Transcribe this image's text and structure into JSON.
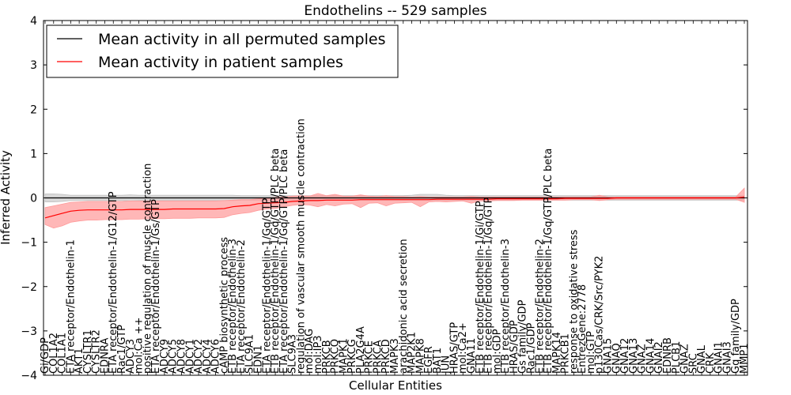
{
  "chart_data": {
    "type": "line",
    "title": "Endothelins -- 529 samples",
    "xlabel": "Cellular Entities",
    "ylabel": "Inferred Activity",
    "ylim": [
      -4,
      4
    ],
    "yticks": [
      -4,
      -3,
      -2,
      -1,
      0,
      1,
      2,
      3,
      4
    ],
    "grid": false,
    "legend_position": "top-left",
    "categories": [
      "Gi/GDP",
      "COL1A2",
      "COL1A1",
      "ETA receptor/Endothelin-1",
      "AKT1",
      "CYSLTR1",
      "CYSLTR2",
      "EDNRA",
      "ETA receptor/Endothelin-1/G12/GTP",
      "Rac1/GTP",
      "ADCY3",
      "mol:Ca ++",
      "positive regulation of muscle contraction",
      "ETA receptor/Endothelin-1/Gs/GTP",
      "ADCY9",
      "ADCY5",
      "ADCY8",
      "ADCY1",
      "ADCY2",
      "ADCY4",
      "ADCY6",
      "cAMP biosynthetic process",
      "ETB receptor/Endothelin-3",
      "ETA receptor/Endothelin-2",
      "SLC9A1",
      "EDN1",
      "ETA receptor/Endothelin-1/Gq/GTP",
      "ETB receptor/Endothelin-1/Gq/GTP/PLC beta",
      "ETA receptor/Endothelin-1/Gq/GTP/PLC beta",
      "SLC9A3",
      "regulation of vascular smooth muscle contraction",
      "mol:DAG",
      "mol:IP3",
      "PRKCB",
      "PRKCQ",
      "MAPK1",
      "PRKCG",
      "PLA2G4A",
      "PRKCE",
      "PRKCA",
      "PRKCD",
      "MAPK3",
      "arachidonic acid secretion",
      "MAP2K1",
      "MAPK8",
      "EGFR",
      "BAT1",
      "JUN",
      "HRAS/GTP",
      "mol:Ca2+",
      "GNA11",
      "ETB receptor/Endothelin-1/Gi/GTP",
      "ETB receptor/Endothelin-1/Gq/GTP",
      "mol:GDP",
      "ETB receptor/Endothelin-3",
      "HRAS/GDP",
      "Gs family/GDP",
      "Rac1/GDP",
      "ETB receptor/Endothelin-2",
      "ETB receptor/Endothelin-1/Gq/GTP/PLC beta",
      "MAPK14",
      "PRKCB1",
      "response to oxidative stress",
      "EntrezGene:2778",
      "mol:GTP",
      "p130Cas/CRK/Src/PYK2",
      "GNA15",
      "GNAQ",
      "GNA12",
      "GNA13",
      "GNAZ",
      "GNA14",
      "GNAI2",
      "EDNRB",
      "PLCB1",
      "GNAZ",
      "SRC",
      "GNAL",
      "CRK",
      "GNAI1",
      "GNAI3",
      "Gq family/GDP",
      "MMP1"
    ],
    "series": [
      {
        "name": "Mean activity in all permuted samples",
        "color": "#000000",
        "band_color": "#c0c0c0",
        "values": [
          0.0,
          0.0,
          0.0,
          0.0,
          0.0,
          0.0,
          0.0,
          0.0,
          0.0,
          0.0,
          0.0,
          0.0,
          0.0,
          0.0,
          0.0,
          0.0,
          0.0,
          0.0,
          0.0,
          0.0,
          0.0,
          0.0,
          0.0,
          0.0,
          0.0,
          0.0,
          0.0,
          0.0,
          0.0,
          0.0,
          0.0,
          0.0,
          0.0,
          0.0,
          0.0,
          0.0,
          0.0,
          0.0,
          0.0,
          0.0,
          0.0,
          0.0,
          0.0,
          0.0,
          0.0,
          0.0,
          0.0,
          0.0,
          0.0,
          0.0,
          0.0,
          0.0,
          0.0,
          0.0,
          0.0,
          0.0,
          0.0,
          0.0,
          0.0,
          0.0,
          0.0,
          0.0,
          0.0,
          0.0,
          0.0,
          0.0,
          0.0,
          0.0,
          0.0,
          0.0,
          0.0,
          0.0,
          0.0,
          0.0,
          0.0,
          0.0,
          0.0,
          0.0,
          0.0,
          0.0,
          0.0,
          0.0,
          0.0
        ],
        "band_low": [
          -0.09,
          -0.09,
          -0.08,
          -0.06,
          -0.06,
          -0.06,
          -0.06,
          -0.06,
          -0.06,
          -0.06,
          -0.07,
          -0.06,
          -0.06,
          -0.06,
          -0.06,
          -0.06,
          -0.06,
          -0.06,
          -0.06,
          -0.06,
          -0.06,
          -0.06,
          -0.06,
          -0.05,
          -0.05,
          -0.05,
          -0.05,
          -0.05,
          -0.05,
          -0.05,
          -0.05,
          -0.05,
          -0.05,
          -0.05,
          -0.05,
          -0.05,
          -0.05,
          -0.05,
          -0.05,
          -0.05,
          -0.05,
          -0.05,
          -0.05,
          -0.05,
          -0.05,
          -0.05,
          -0.05,
          -0.05,
          -0.05,
          -0.05,
          -0.05,
          -0.05,
          -0.05,
          -0.05,
          -0.05,
          -0.05,
          -0.05,
          -0.05,
          -0.05,
          -0.05,
          -0.05,
          -0.05,
          -0.05,
          -0.05,
          -0.05,
          -0.05,
          -0.05,
          -0.05,
          -0.05,
          -0.05,
          -0.05,
          -0.05,
          -0.05,
          -0.05,
          -0.05,
          -0.05,
          -0.05,
          -0.05,
          -0.05,
          -0.05,
          -0.05,
          -0.05,
          -0.05
        ],
        "band_high": [
          0.09,
          0.09,
          0.08,
          0.06,
          0.06,
          0.06,
          0.06,
          0.06,
          0.06,
          0.06,
          0.07,
          0.06,
          0.06,
          0.06,
          0.06,
          0.06,
          0.06,
          0.06,
          0.06,
          0.06,
          0.06,
          0.06,
          0.06,
          0.05,
          0.05,
          0.05,
          0.05,
          0.05,
          0.05,
          0.05,
          0.05,
          0.05,
          0.05,
          0.05,
          0.05,
          0.05,
          0.05,
          0.05,
          0.05,
          0.05,
          0.05,
          0.05,
          0.05,
          0.06,
          0.08,
          0.08,
          0.08,
          0.06,
          0.05,
          0.05,
          0.05,
          0.05,
          0.05,
          0.05,
          0.05,
          0.05,
          0.05,
          0.05,
          0.05,
          0.05,
          0.05,
          0.05,
          0.05,
          0.05,
          0.05,
          0.05,
          0.05,
          0.05,
          0.05,
          0.05,
          0.05,
          0.05,
          0.05,
          0.05,
          0.05,
          0.05,
          0.05,
          0.05,
          0.05,
          0.05,
          0.05,
          0.05,
          0.05
        ]
      },
      {
        "name": "Mean activity in patient samples",
        "color": "#ff0000",
        "band_color": "#ff9999",
        "values": [
          -0.45,
          -0.4,
          -0.35,
          -0.3,
          -0.28,
          -0.27,
          -0.27,
          -0.27,
          -0.27,
          -0.27,
          -0.26,
          -0.26,
          -0.26,
          -0.26,
          -0.26,
          -0.25,
          -0.25,
          -0.25,
          -0.25,
          -0.25,
          -0.25,
          -0.24,
          -0.2,
          -0.18,
          -0.17,
          -0.13,
          -0.12,
          -0.11,
          -0.1,
          -0.08,
          -0.07,
          -0.06,
          -0.06,
          -0.05,
          -0.05,
          -0.05,
          -0.05,
          -0.04,
          -0.04,
          -0.04,
          -0.04,
          -0.04,
          -0.04,
          -0.04,
          -0.04,
          -0.04,
          -0.03,
          -0.03,
          -0.03,
          -0.03,
          -0.03,
          -0.03,
          -0.03,
          -0.02,
          -0.02,
          -0.02,
          -0.02,
          -0.02,
          -0.02,
          -0.02,
          -0.02,
          -0.01,
          -0.01,
          -0.01,
          -0.01,
          -0.01,
          -0.01,
          0.0,
          0.0,
          0.0,
          0.0,
          0.0,
          0.0,
          0.0,
          0.0,
          0.0,
          0.0,
          0.0,
          0.0,
          0.0,
          0.0,
          0.0,
          0.02
        ],
        "band_low": [
          -0.6,
          -0.68,
          -0.63,
          -0.55,
          -0.52,
          -0.5,
          -0.5,
          -0.49,
          -0.49,
          -0.49,
          -0.48,
          -0.48,
          -0.47,
          -0.47,
          -0.47,
          -0.46,
          -0.46,
          -0.46,
          -0.45,
          -0.45,
          -0.45,
          -0.44,
          -0.38,
          -0.35,
          -0.33,
          -0.28,
          -0.25,
          -0.24,
          -0.2,
          -0.17,
          -0.15,
          -0.16,
          -0.2,
          -0.15,
          -0.18,
          -0.14,
          -0.13,
          -0.22,
          -0.12,
          -0.11,
          -0.18,
          -0.12,
          -0.11,
          -0.1,
          -0.2,
          -0.09,
          -0.08,
          -0.09,
          -0.08,
          -0.07,
          -0.12,
          -0.07,
          -0.07,
          -0.06,
          -0.06,
          -0.06,
          -0.05,
          -0.05,
          -0.05,
          -0.05,
          -0.05,
          -0.05,
          -0.04,
          -0.04,
          -0.04,
          -0.06,
          -0.04,
          -0.03,
          -0.03,
          -0.03,
          -0.03,
          -0.03,
          -0.03,
          -0.03,
          -0.03,
          -0.03,
          -0.03,
          -0.03,
          -0.03,
          -0.03,
          -0.03,
          -0.03,
          -0.1
        ],
        "band_high": [
          -0.22,
          -0.18,
          -0.14,
          -0.1,
          -0.09,
          -0.08,
          -0.08,
          -0.08,
          -0.08,
          -0.08,
          -0.07,
          -0.07,
          -0.07,
          -0.07,
          -0.07,
          -0.07,
          -0.07,
          -0.07,
          -0.07,
          -0.07,
          -0.07,
          -0.06,
          -0.05,
          -0.04,
          -0.04,
          -0.02,
          0.0,
          0.01,
          0.02,
          0.04,
          0.05,
          0.04,
          0.1,
          0.05,
          0.08,
          0.04,
          0.04,
          0.07,
          0.04,
          0.03,
          0.05,
          0.03,
          0.03,
          0.02,
          0.03,
          0.02,
          0.02,
          0.02,
          0.02,
          0.02,
          0.03,
          0.02,
          0.02,
          0.02,
          0.02,
          0.02,
          0.02,
          0.02,
          0.02,
          0.02,
          0.02,
          0.02,
          0.02,
          0.02,
          0.02,
          0.06,
          0.02,
          0.02,
          0.02,
          0.02,
          0.02,
          0.02,
          0.02,
          0.02,
          0.02,
          0.02,
          0.02,
          0.02,
          0.02,
          0.02,
          0.02,
          0.02,
          0.22
        ]
      }
    ]
  }
}
